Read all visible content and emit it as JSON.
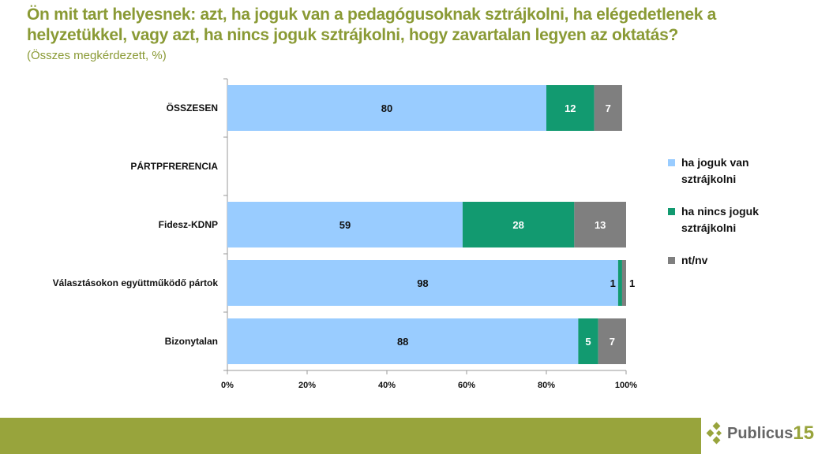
{
  "title": "Ön mit tart helyesnek: azt, ha joguk van a pedagógusoknak sztrájkolni, ha elégedetlenek a helyzetükkel, vagy azt, ha nincs joguk sztrájkolni, hogy zavartalan legyen az oktatás?",
  "subtitle": "(Összes megkérdezett, %)",
  "logo": {
    "text": "Publicus",
    "number": "15"
  },
  "chart_data": {
    "type": "bar",
    "orientation": "horizontal",
    "stacked": "percent",
    "categories": [
      "ÖSSZESEN",
      "PÁRTPFRERENCIA",
      "Fidesz-KDNP",
      "Választásokon együttműködő pártok",
      "Bizonytalan"
    ],
    "series": [
      {
        "name": "ha joguk van sztrájkolni",
        "color": "#99ccff",
        "values": [
          80,
          null,
          59,
          98,
          88
        ],
        "labels": [
          "80",
          "",
          "59",
          "98",
          "88"
        ]
      },
      {
        "name": "ha nincs joguk sztrájkolni",
        "color": "#129a70",
        "values": [
          12,
          null,
          28,
          1,
          5
        ],
        "labels": [
          "12",
          "",
          "28",
          "1",
          "5"
        ]
      },
      {
        "name": "nt/nv",
        "color": "#7f7f7f",
        "values": [
          7,
          null,
          13,
          1,
          7
        ],
        "labels": [
          "7",
          "",
          "13",
          "1",
          "7"
        ]
      }
    ],
    "xticks": [
      "0%",
      "20%",
      "40%",
      "60%",
      "80%",
      "100%"
    ],
    "xlim": [
      0,
      100
    ],
    "legend": "right",
    "grid": false
  }
}
